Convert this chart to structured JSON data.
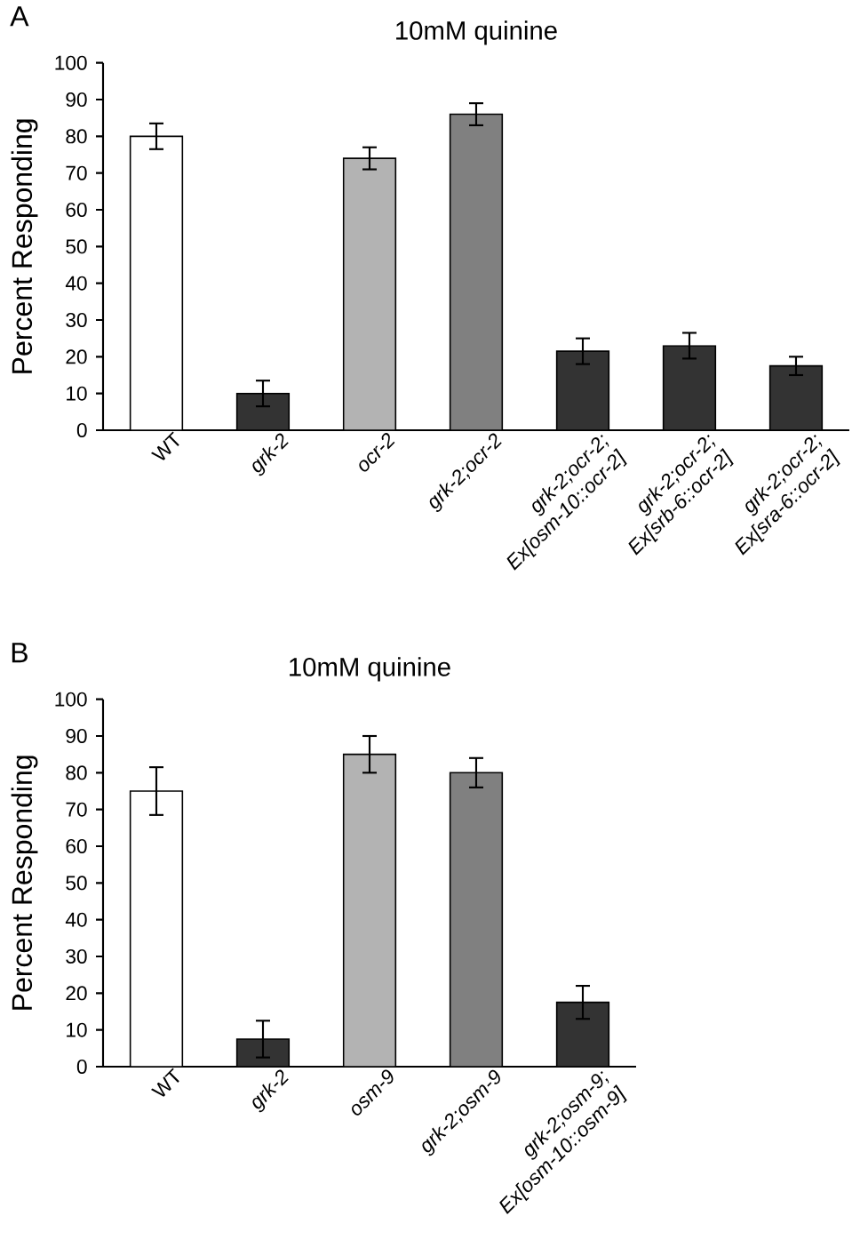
{
  "chart_data": [
    {
      "type": "bar",
      "title": "10mM quinine",
      "ylabel": "Percent Responding",
      "annotations": [
        "A"
      ],
      "categories": [
        "WT",
        "*grk-2*",
        "*ocr-2*",
        "*grk-2;ocr-2*",
        "*grk-2;ocr-2; Ex[osm-10::ocr-2]*",
        "*grk-2;ocr-2; Ex[srb-6::ocr-2]*",
        "*grk-2;ocr-2; Ex[sra-6::ocr-2]*"
      ],
      "values": [
        80,
        10,
        74,
        86,
        21.5,
        23,
        17.5
      ],
      "errors": [
        3.5,
        3.5,
        3,
        3,
        3.5,
        3.5,
        2.5
      ],
      "colors": [
        "#ffffff",
        "#333333",
        "#b3b3b3",
        "#808080",
        "#333333",
        "#333333",
        "#333333"
      ],
      "ylim": [
        0,
        100
      ],
      "yticks": [
        0,
        10,
        20,
        30,
        40,
        50,
        60,
        70,
        80,
        90,
        100
      ],
      "grid": false
    },
    {
      "type": "bar",
      "title": "10mM quinine",
      "ylabel": "Percent Responding",
      "annotations": [
        "B"
      ],
      "categories": [
        "WT",
        "*grk-2*",
        "*osm-9*",
        "*grk-2;osm-9*",
        "*grk-2;osm-9; Ex[osm-10::osm-9]*"
      ],
      "values": [
        75,
        7.5,
        85,
        80,
        17.5
      ],
      "errors": [
        6.5,
        5,
        5,
        4,
        4.5
      ],
      "colors": [
        "#ffffff",
        "#333333",
        "#b3b3b3",
        "#808080",
        "#333333"
      ],
      "ylim": [
        0,
        100
      ],
      "yticks": [
        0,
        10,
        20,
        30,
        40,
        50,
        60,
        70,
        80,
        90,
        100
      ],
      "grid": false
    }
  ]
}
